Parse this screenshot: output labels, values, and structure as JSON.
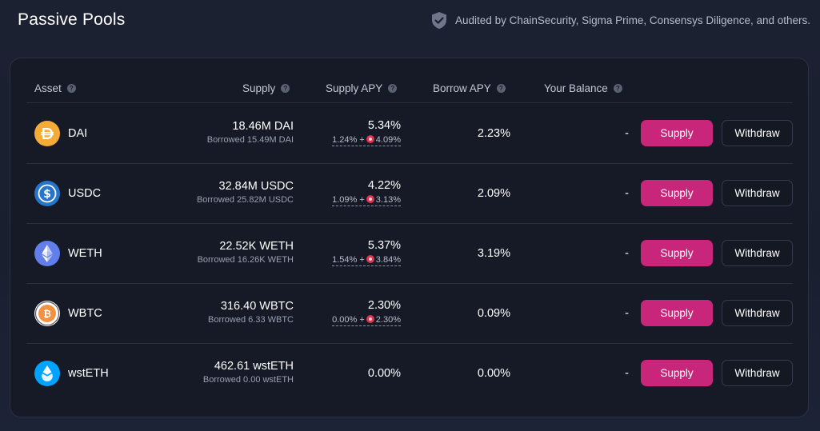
{
  "header": {
    "title": "Passive Pools",
    "audit_text": "Audited by ChainSecurity, Sigma Prime, Consensys Diligence, and others."
  },
  "table": {
    "columns": {
      "asset": "Asset",
      "supply": "Supply",
      "supply_apy": "Supply APY",
      "borrow_apy": "Borrow APY",
      "balance": "Your Balance"
    },
    "rows": [
      {
        "name": "DAI",
        "supply": "18.46M DAI",
        "borrowed": "Borrowed 15.49M DAI",
        "apy": "5.34%",
        "apy_base": "1.24% +",
        "apy_reward": "4.09%",
        "borrow_apy": "2.23%",
        "balance": "-",
        "supply_label": "Supply",
        "withdraw_label": "Withdraw",
        "icon": "dai-icon",
        "color": "#f5ac37"
      },
      {
        "name": "USDC",
        "supply": "32.84M USDC",
        "borrowed": "Borrowed 25.82M USDC",
        "apy": "4.22%",
        "apy_base": "1.09% +",
        "apy_reward": "3.13%",
        "borrow_apy": "2.09%",
        "balance": "-",
        "supply_label": "Supply",
        "withdraw_label": "Withdraw",
        "icon": "usdc-icon",
        "color": "#2775ca"
      },
      {
        "name": "WETH",
        "supply": "22.52K WETH",
        "borrowed": "Borrowed 16.26K WETH",
        "apy": "5.37%",
        "apy_base": "1.54% +",
        "apy_reward": "3.84%",
        "borrow_apy": "3.19%",
        "balance": "-",
        "supply_label": "Supply",
        "withdraw_label": "Withdraw",
        "icon": "weth-icon",
        "color": "#627eea"
      },
      {
        "name": "WBTC",
        "supply": "316.40 WBTC",
        "borrowed": "Borrowed 6.33 WBTC",
        "apy": "2.30%",
        "apy_base": "0.00% +",
        "apy_reward": "2.30%",
        "borrow_apy": "0.09%",
        "balance": "-",
        "supply_label": "Supply",
        "withdraw_label": "Withdraw",
        "icon": "wbtc-icon",
        "color": "#f09242"
      },
      {
        "name": "wstETH",
        "supply": "462.61 wstETH",
        "borrowed": "Borrowed 0.00 wstETH",
        "apy": "0.00%",
        "borrow_apy": "0.00%",
        "balance": "-",
        "supply_label": "Supply",
        "withdraw_label": "Withdraw",
        "icon": "wsteth-icon",
        "color": "#00a3ff"
      }
    ]
  },
  "colors": {
    "accent": "#c7267a",
    "background": "#1a1f30",
    "card": "#161a26"
  }
}
